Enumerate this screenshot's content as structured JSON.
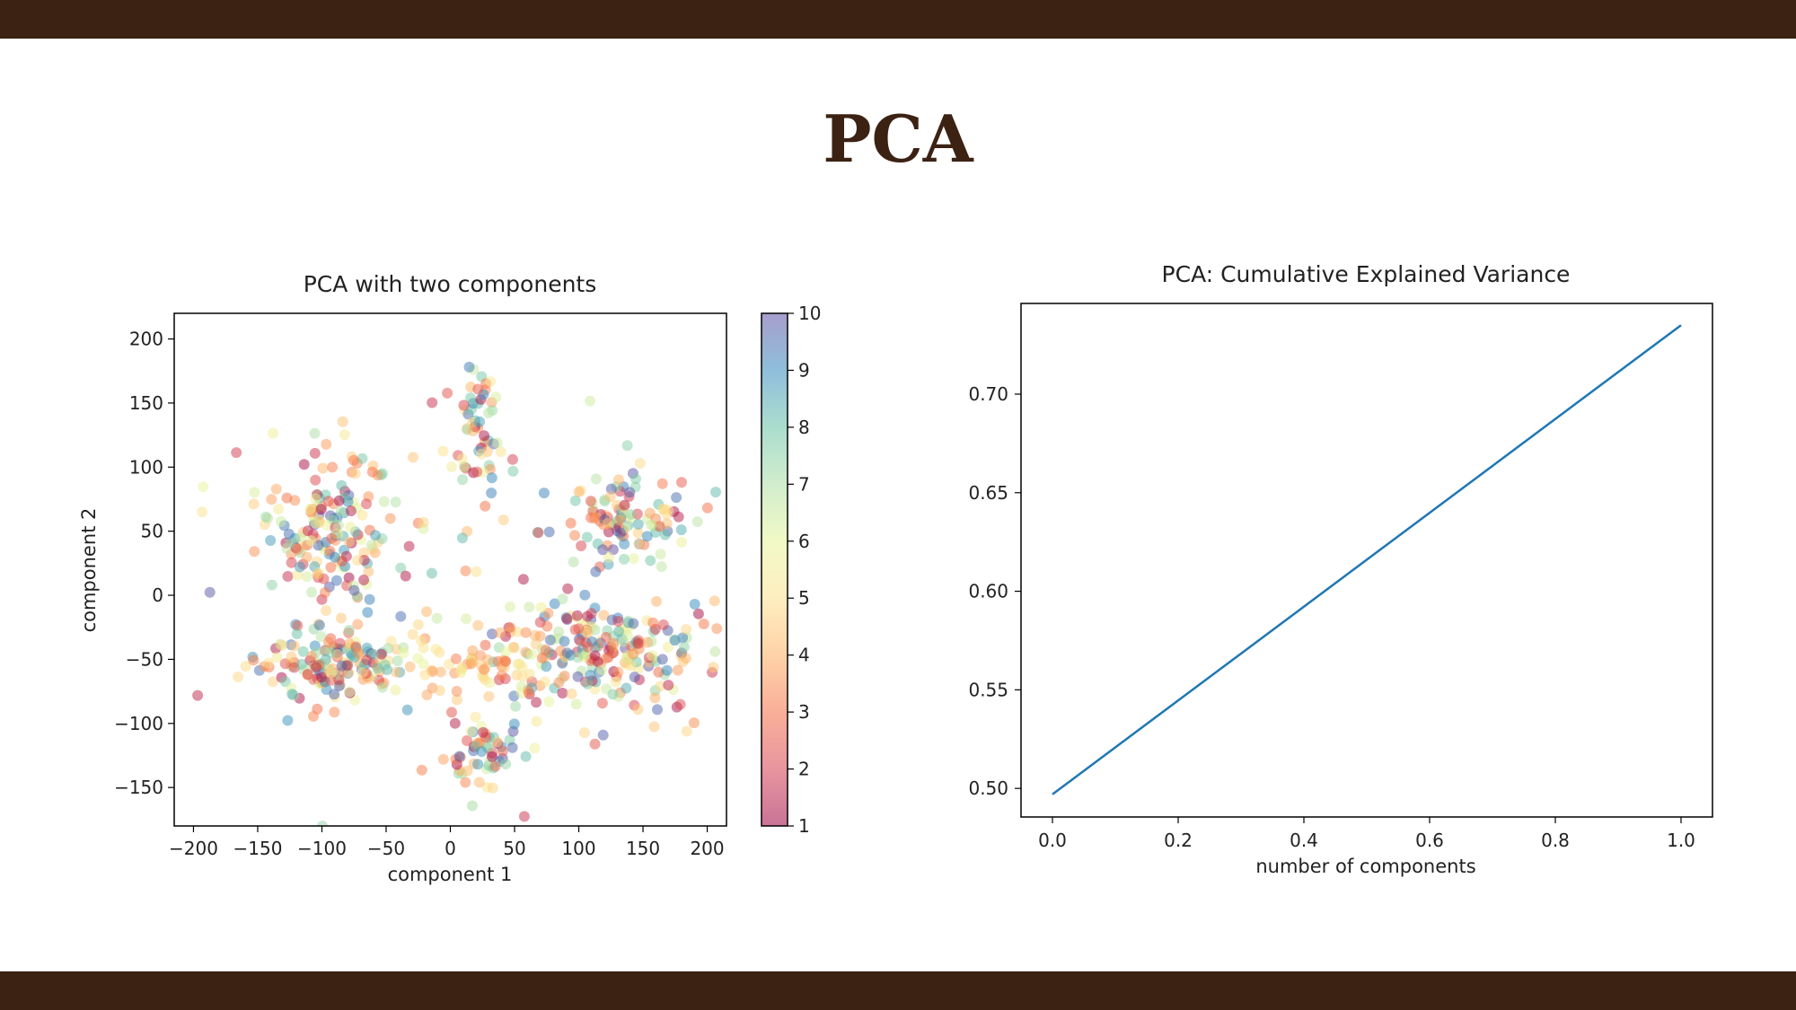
{
  "slide": {
    "title": "PCA"
  },
  "colors": {
    "bar": "#3c2213",
    "title": "#3c2213",
    "line": "#1f77b4"
  },
  "chart_data": [
    {
      "type": "scatter",
      "title": "PCA with two components",
      "xlabel": "component 1",
      "ylabel": "component 2",
      "xlim": [
        -215,
        215
      ],
      "ylim": [
        -180,
        220
      ],
      "xticks": [
        -200,
        -150,
        -100,
        -50,
        0,
        50,
        100,
        150,
        200
      ],
      "xtick_labels": [
        "−200",
        "−150",
        "−100",
        "−50",
        "0",
        "50",
        "100",
        "150",
        "200"
      ],
      "yticks": [
        -150,
        -100,
        -50,
        0,
        50,
        100,
        150,
        200
      ],
      "ytick_labels": [
        "−150",
        "−100",
        "−50",
        "0",
        "50",
        "100",
        "150",
        "200"
      ],
      "colorbar": {
        "colormap": "Spectral",
        "range": [
          1,
          10
        ],
        "ticks": [
          1,
          2,
          3,
          4,
          5,
          6,
          7,
          8,
          9,
          10
        ]
      },
      "grid": false,
      "point_alpha": 0.5,
      "clusters": [
        {
          "cx": -95,
          "cy": 50,
          "sx": 28,
          "sy": 30,
          "n": 170,
          "c": [
            1,
            10
          ]
        },
        {
          "cx": -95,
          "cy": -55,
          "sx": 30,
          "sy": 15,
          "n": 160,
          "c": [
            1,
            10
          ]
        },
        {
          "cx": 20,
          "cy": 125,
          "sx": 12,
          "sy": 25,
          "n": 60,
          "c": [
            1,
            10
          ]
        },
        {
          "cx": 130,
          "cy": 60,
          "sx": 30,
          "sy": 18,
          "n": 110,
          "c": [
            1,
            10
          ]
        },
        {
          "cx": 120,
          "cy": -45,
          "sx": 48,
          "sy": 22,
          "n": 230,
          "c": [
            1,
            10
          ]
        },
        {
          "cx": 20,
          "cy": -55,
          "sx": 25,
          "sy": 12,
          "n": 60,
          "c": [
            3,
            6
          ]
        },
        {
          "cx": 25,
          "cy": -125,
          "sx": 15,
          "sy": 15,
          "n": 55,
          "c": [
            1,
            10
          ]
        },
        {
          "cx": 0,
          "cy": 0,
          "sx": 110,
          "sy": 85,
          "n": 45,
          "c": [
            1,
            10
          ]
        }
      ]
    },
    {
      "type": "line",
      "title": "PCA: Cumulative Explained Variance",
      "xlabel": "number of components",
      "ylabel": "",
      "xlim": [
        -0.05,
        1.05
      ],
      "ylim": [
        0.4855,
        0.746
      ],
      "xticks": [
        0.0,
        0.2,
        0.4,
        0.6,
        0.8,
        1.0
      ],
      "xtick_labels": [
        "0.0",
        "0.2",
        "0.4",
        "0.6",
        "0.8",
        "1.0"
      ],
      "yticks": [
        0.5,
        0.55,
        0.6,
        0.65,
        0.7
      ],
      "ytick_labels": [
        "0.50",
        "0.55",
        "0.60",
        "0.65",
        "0.70"
      ],
      "grid": false,
      "x": [
        0.0,
        1.0
      ],
      "y": [
        0.497,
        0.735
      ]
    }
  ]
}
